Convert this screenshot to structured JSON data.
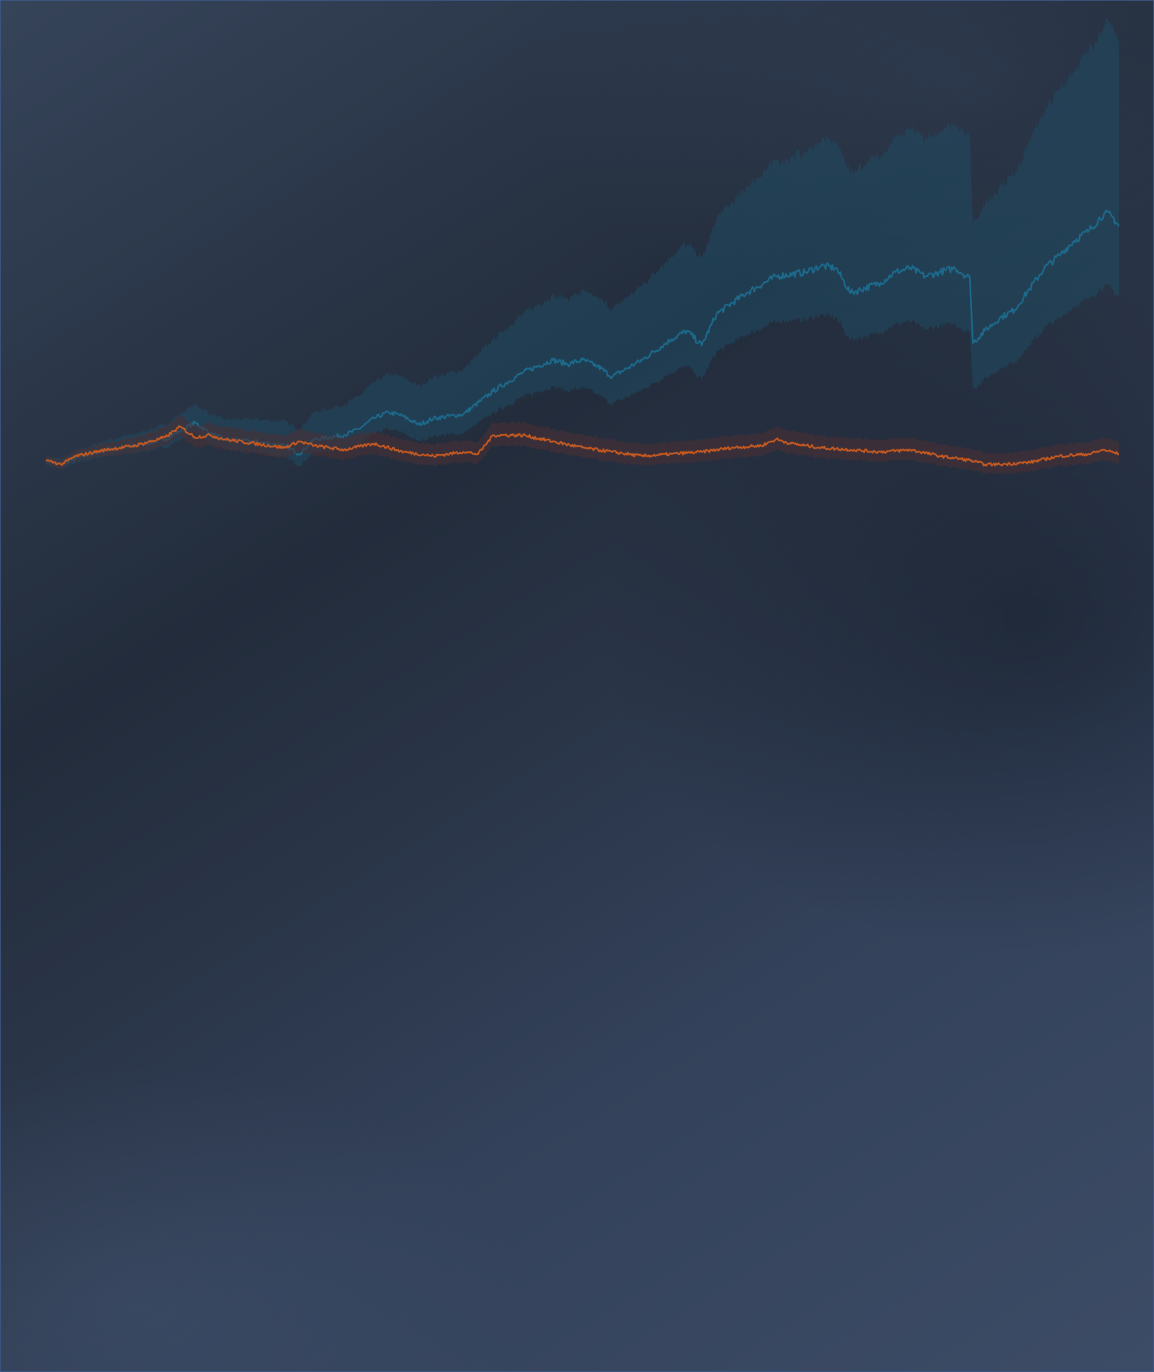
{
  "chart_data": {
    "type": "line",
    "title": "",
    "xlabel": "",
    "ylabel": "",
    "grid": false,
    "legend": "none",
    "xlim": [
      0,
      720
    ],
    "ylim": [
      0.75,
      3.1
    ],
    "series": [
      {
        "color": "#1d6a8c",
        "band_color": "#1f4a63",
        "points": [
          [
            0,
            1.0
          ],
          [
            10,
            0.98
          ],
          [
            20,
            1.01
          ],
          [
            40,
            1.05
          ],
          [
            60,
            1.07
          ],
          [
            80,
            1.1
          ],
          [
            90,
            1.14
          ],
          [
            100,
            1.18
          ],
          [
            110,
            1.13
          ],
          [
            120,
            1.1
          ],
          [
            140,
            1.09
          ],
          [
            160,
            1.07
          ],
          [
            170,
            1.03
          ],
          [
            180,
            1.1
          ],
          [
            200,
            1.12
          ],
          [
            210,
            1.15
          ],
          [
            220,
            1.2
          ],
          [
            230,
            1.23
          ],
          [
            240,
            1.21
          ],
          [
            250,
            1.17
          ],
          [
            260,
            1.2
          ],
          [
            280,
            1.22
          ],
          [
            300,
            1.33
          ],
          [
            320,
            1.42
          ],
          [
            340,
            1.48
          ],
          [
            350,
            1.46
          ],
          [
            360,
            1.48
          ],
          [
            370,
            1.45
          ],
          [
            380,
            1.4
          ],
          [
            400,
            1.48
          ],
          [
            420,
            1.58
          ],
          [
            430,
            1.62
          ],
          [
            440,
            1.55
          ],
          [
            450,
            1.7
          ],
          [
            470,
            1.8
          ],
          [
            490,
            1.88
          ],
          [
            510,
            1.9
          ],
          [
            520,
            1.93
          ],
          [
            530,
            1.92
          ],
          [
            540,
            1.8
          ],
          [
            560,
            1.85
          ],
          [
            570,
            1.9
          ],
          [
            580,
            1.92
          ],
          [
            590,
            1.88
          ],
          [
            600,
            1.9
          ],
          [
            610,
            1.92
          ],
          [
            620,
            1.87
          ],
          [
            622,
            1.56
          ],
          [
            630,
            1.62
          ],
          [
            640,
            1.68
          ],
          [
            650,
            1.72
          ],
          [
            660,
            1.82
          ],
          [
            670,
            1.92
          ],
          [
            680,
            1.98
          ],
          [
            690,
            2.05
          ],
          [
            700,
            2.1
          ],
          [
            710,
            2.18
          ],
          [
            715,
            2.17
          ],
          [
            720,
            2.12
          ]
        ]
      },
      {
        "color": "#c85a20",
        "band_color": "#4a3036",
        "points": [
          [
            0,
            1.0
          ],
          [
            10,
            0.98
          ],
          [
            20,
            1.02
          ],
          [
            40,
            1.05
          ],
          [
            60,
            1.07
          ],
          [
            80,
            1.11
          ],
          [
            90,
            1.16
          ],
          [
            100,
            1.11
          ],
          [
            110,
            1.12
          ],
          [
            120,
            1.1
          ],
          [
            140,
            1.08
          ],
          [
            160,
            1.06
          ],
          [
            170,
            1.09
          ],
          [
            180,
            1.07
          ],
          [
            200,
            1.05
          ],
          [
            220,
            1.08
          ],
          [
            240,
            1.04
          ],
          [
            260,
            1.02
          ],
          [
            280,
            1.04
          ],
          [
            290,
            1.03
          ],
          [
            300,
            1.12
          ],
          [
            320,
            1.12
          ],
          [
            340,
            1.09
          ],
          [
            360,
            1.06
          ],
          [
            380,
            1.04
          ],
          [
            400,
            1.02
          ],
          [
            420,
            1.03
          ],
          [
            440,
            1.04
          ],
          [
            460,
            1.06
          ],
          [
            480,
            1.07
          ],
          [
            490,
            1.1
          ],
          [
            500,
            1.08
          ],
          [
            520,
            1.06
          ],
          [
            540,
            1.05
          ],
          [
            560,
            1.04
          ],
          [
            580,
            1.05
          ],
          [
            600,
            1.02
          ],
          [
            620,
            1.0
          ],
          [
            630,
            0.98
          ],
          [
            640,
            0.98
          ],
          [
            660,
            0.99
          ],
          [
            680,
            1.02
          ],
          [
            700,
            1.03
          ],
          [
            710,
            1.05
          ],
          [
            720,
            1.03
          ]
        ]
      }
    ]
  }
}
